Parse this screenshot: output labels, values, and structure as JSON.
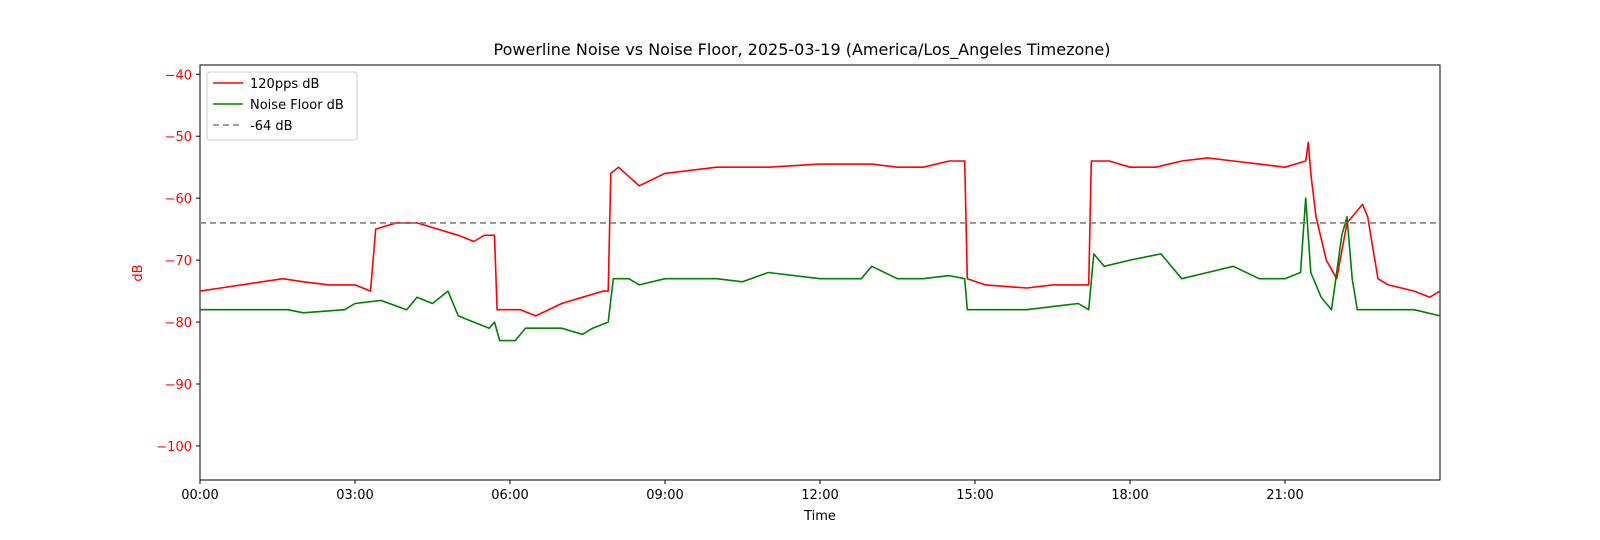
{
  "chart_data": {
    "type": "line",
    "title": "Powerline Noise vs Noise Floor, 2025-03-19 (America/Los_Angeles Timezone)",
    "xlabel": "Time",
    "ylabel": "dB",
    "ylabel_color": "#ff0000",
    "ytick_color": "#ff0000",
    "x_unit": "hours",
    "xlim": [
      0,
      24
    ],
    "ylim": [
      -105.5,
      -38.5
    ],
    "xticks": [
      {
        "value": 0,
        "label": "00:00"
      },
      {
        "value": 3,
        "label": "03:00"
      },
      {
        "value": 6,
        "label": "06:00"
      },
      {
        "value": 9,
        "label": "09:00"
      },
      {
        "value": 12,
        "label": "12:00"
      },
      {
        "value": 15,
        "label": "15:00"
      },
      {
        "value": 18,
        "label": "18:00"
      },
      {
        "value": 21,
        "label": "21:00"
      }
    ],
    "yticks": [
      {
        "value": -40,
        "label": "−40"
      },
      {
        "value": -50,
        "label": "−50"
      },
      {
        "value": -60,
        "label": "−60"
      },
      {
        "value": -70,
        "label": "−70"
      },
      {
        "value": -80,
        "label": "−80"
      },
      {
        "value": -90,
        "label": "−90"
      },
      {
        "value": -100,
        "label": "−100"
      }
    ],
    "grid": false,
    "legend": {
      "position": "upper-left",
      "entries": [
        {
          "label": "120pps dB",
          "color": "#ff0000",
          "style": "solid"
        },
        {
          "label": "Noise Floor dB",
          "color": "#008000",
          "style": "solid"
        },
        {
          "label": "-64 dB",
          "color": "#808080",
          "style": "dashed"
        }
      ]
    },
    "reference_line": {
      "y": -64,
      "color": "#808080",
      "style": "dashed"
    },
    "series": [
      {
        "name": "120pps dB",
        "color": "#ff0000",
        "points": [
          [
            0.0,
            -75
          ],
          [
            0.4,
            -74.5
          ],
          [
            0.8,
            -74
          ],
          [
            1.2,
            -73.5
          ],
          [
            1.6,
            -73
          ],
          [
            2.0,
            -73.5
          ],
          [
            2.5,
            -74
          ],
          [
            3.0,
            -74
          ],
          [
            3.3,
            -75
          ],
          [
            3.4,
            -65
          ],
          [
            3.8,
            -64
          ],
          [
            4.2,
            -64
          ],
          [
            4.6,
            -65
          ],
          [
            5.0,
            -66
          ],
          [
            5.3,
            -67
          ],
          [
            5.5,
            -66
          ],
          [
            5.7,
            -66
          ],
          [
            5.75,
            -78
          ],
          [
            6.2,
            -78
          ],
          [
            6.5,
            -79
          ],
          [
            7.0,
            -77
          ],
          [
            7.4,
            -76
          ],
          [
            7.8,
            -75
          ],
          [
            7.9,
            -75
          ],
          [
            7.95,
            -56
          ],
          [
            8.1,
            -55
          ],
          [
            8.5,
            -58
          ],
          [
            9.0,
            -56
          ],
          [
            9.5,
            -55.5
          ],
          [
            10.0,
            -55
          ],
          [
            11.0,
            -55
          ],
          [
            12.0,
            -54.5
          ],
          [
            13.0,
            -54.5
          ],
          [
            13.5,
            -55
          ],
          [
            14.0,
            -55
          ],
          [
            14.5,
            -54
          ],
          [
            14.8,
            -54
          ],
          [
            14.85,
            -73
          ],
          [
            15.2,
            -74
          ],
          [
            16.0,
            -74.5
          ],
          [
            16.5,
            -74
          ],
          [
            17.0,
            -74
          ],
          [
            17.2,
            -74
          ],
          [
            17.25,
            -54
          ],
          [
            17.6,
            -54
          ],
          [
            18.0,
            -55
          ],
          [
            18.5,
            -55
          ],
          [
            19.0,
            -54
          ],
          [
            19.5,
            -53.5
          ],
          [
            20.0,
            -54
          ],
          [
            20.5,
            -54.5
          ],
          [
            21.0,
            -55
          ],
          [
            21.4,
            -54
          ],
          [
            21.45,
            -51
          ],
          [
            21.5,
            -56
          ],
          [
            21.6,
            -63
          ],
          [
            21.8,
            -70
          ],
          [
            22.0,
            -73
          ],
          [
            22.2,
            -64
          ],
          [
            22.4,
            -62
          ],
          [
            22.5,
            -61
          ],
          [
            22.6,
            -63
          ],
          [
            22.7,
            -68
          ],
          [
            22.8,
            -73
          ],
          [
            23.0,
            -74
          ],
          [
            23.5,
            -75
          ],
          [
            23.8,
            -76
          ],
          [
            24.0,
            -75
          ]
        ]
      },
      {
        "name": "Noise Floor dB",
        "color": "#008000",
        "points": [
          [
            0.0,
            -78
          ],
          [
            1.0,
            -78
          ],
          [
            1.7,
            -78
          ],
          [
            2.0,
            -78.5
          ],
          [
            2.8,
            -78
          ],
          [
            3.0,
            -77
          ],
          [
            3.5,
            -76.5
          ],
          [
            4.0,
            -78
          ],
          [
            4.2,
            -76
          ],
          [
            4.5,
            -77
          ],
          [
            4.8,
            -75
          ],
          [
            5.0,
            -79
          ],
          [
            5.3,
            -80
          ],
          [
            5.6,
            -81
          ],
          [
            5.7,
            -80
          ],
          [
            5.8,
            -83
          ],
          [
            6.1,
            -83
          ],
          [
            6.3,
            -81
          ],
          [
            7.0,
            -81
          ],
          [
            7.4,
            -82
          ],
          [
            7.6,
            -81
          ],
          [
            7.9,
            -80
          ],
          [
            8.0,
            -73
          ],
          [
            8.3,
            -73
          ],
          [
            8.5,
            -74
          ],
          [
            9.0,
            -73
          ],
          [
            10.0,
            -73
          ],
          [
            10.5,
            -73.5
          ],
          [
            11.0,
            -72
          ],
          [
            12.0,
            -73
          ],
          [
            12.8,
            -73
          ],
          [
            13.0,
            -71
          ],
          [
            13.5,
            -73
          ],
          [
            14.0,
            -73
          ],
          [
            14.5,
            -72.5
          ],
          [
            14.8,
            -73
          ],
          [
            14.85,
            -78
          ],
          [
            15.5,
            -78
          ],
          [
            16.0,
            -78
          ],
          [
            16.5,
            -77.5
          ],
          [
            17.0,
            -77
          ],
          [
            17.2,
            -78
          ],
          [
            17.3,
            -69
          ],
          [
            17.5,
            -71
          ],
          [
            18.0,
            -70
          ],
          [
            18.6,
            -69
          ],
          [
            19.0,
            -73
          ],
          [
            19.5,
            -72
          ],
          [
            20.0,
            -71
          ],
          [
            20.5,
            -73
          ],
          [
            21.0,
            -73
          ],
          [
            21.3,
            -72
          ],
          [
            21.4,
            -60
          ],
          [
            21.5,
            -72
          ],
          [
            21.7,
            -76
          ],
          [
            21.9,
            -78
          ],
          [
            22.0,
            -72
          ],
          [
            22.1,
            -66
          ],
          [
            22.2,
            -63
          ],
          [
            22.3,
            -73
          ],
          [
            22.4,
            -78
          ],
          [
            23.0,
            -78
          ],
          [
            23.5,
            -78
          ],
          [
            24.0,
            -79
          ]
        ]
      }
    ]
  }
}
